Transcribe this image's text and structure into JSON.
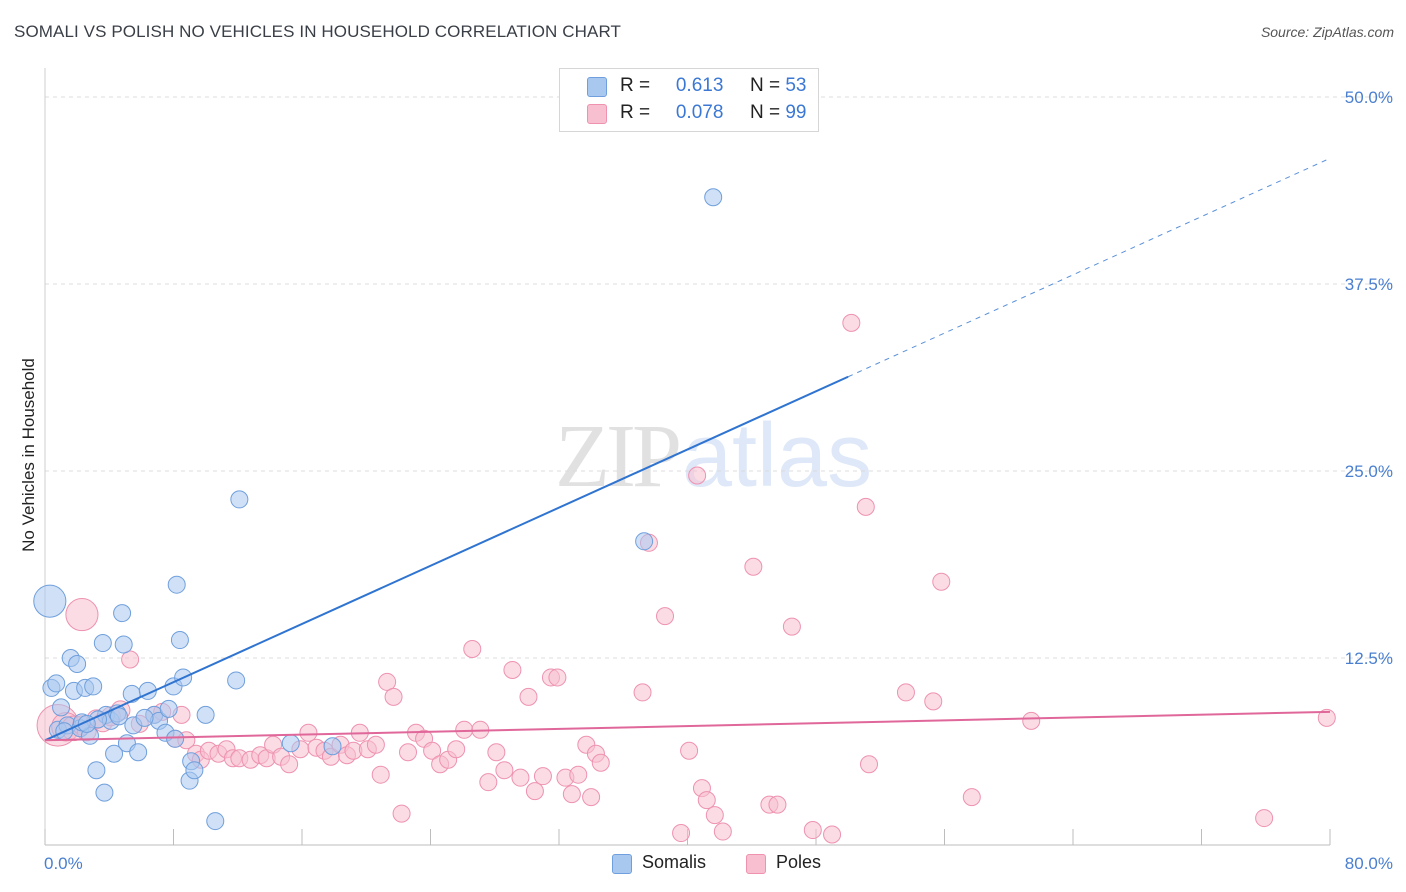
{
  "title": "SOMALI VS POLISH NO VEHICLES IN HOUSEHOLD CORRELATION CHART",
  "source": "Source: ZipAtlas.com",
  "watermark": {
    "zip": "ZIP",
    "atlas": "atlas"
  },
  "legend": {
    "somali": {
      "r_label": "R =",
      "r_value": "0.613",
      "n_label": "N =",
      "n_value": "53"
    },
    "poles": {
      "r_label": "R =",
      "r_value": "0.078",
      "n_label": "N =",
      "n_value": "99"
    }
  },
  "bottom_legend": {
    "somalis": "Somalis",
    "poles": "Poles"
  },
  "colors": {
    "somali_fill": "#a9c8f0",
    "somali_stroke": "#6f9fdc",
    "somali_line": "#2f74d0",
    "poles_fill": "#f7bfd0",
    "poles_stroke": "#ee92b0",
    "poles_line": "#e0679a",
    "tick_label": "#4a7fd0",
    "grid": "#dcdcdc"
  },
  "chart_data": {
    "type": "scatter",
    "title": "SOMALI VS POLISH NO VEHICLES IN HOUSEHOLD CORRELATION CHART",
    "ylabel": "No Vehicles in Household",
    "xlabel": "",
    "xlim": [
      0,
      80
    ],
    "ylim": [
      0,
      50
    ],
    "x_tick_labels": [
      "0.0%",
      "80.0%"
    ],
    "y_ticks": [
      12.5,
      25.0,
      37.5,
      50.0
    ],
    "y_tick_labels": [
      "12.5%",
      "25.0%",
      "37.5%",
      "50.0%"
    ],
    "grid": "horizontal dashed",
    "legend_position": "top-center",
    "series": [
      {
        "name": "Somalis",
        "r": 0.613,
        "n": 53,
        "trend": {
          "x0": 0,
          "y0": 7.0,
          "x1": 50,
          "y1": 31.3,
          "dashed_to_x": 80,
          "dashed_to_y": 45.9
        },
        "points": [
          [
            0.3,
            16.3,
            1.7
          ],
          [
            0.4,
            10.5,
            0.9
          ],
          [
            0.7,
            10.8,
            0.9
          ],
          [
            0.8,
            7.7,
            0.9
          ],
          [
            1.0,
            9.2,
            0.9
          ],
          [
            1.4,
            8.0,
            0.9
          ],
          [
            1.6,
            12.5,
            0.9
          ],
          [
            1.8,
            10.3,
            0.9
          ],
          [
            2.0,
            12.1,
            0.9
          ],
          [
            2.2,
            7.8,
            0.9
          ],
          [
            2.5,
            10.5,
            0.9
          ],
          [
            2.8,
            7.3,
            0.9
          ],
          [
            3.0,
            10.6,
            0.9
          ],
          [
            3.2,
            5.0,
            0.9
          ],
          [
            3.6,
            13.5,
            0.9
          ],
          [
            3.8,
            8.7,
            0.9
          ],
          [
            4.1,
            8.3,
            0.9
          ],
          [
            4.3,
            6.1,
            0.9
          ],
          [
            4.5,
            8.8,
            0.9
          ],
          [
            4.8,
            15.5,
            0.9
          ],
          [
            4.9,
            13.4,
            0.9
          ],
          [
            5.1,
            6.8,
            0.9
          ],
          [
            5.4,
            10.1,
            0.9
          ],
          [
            5.8,
            6.2,
            0.9
          ],
          [
            3.7,
            3.5,
            0.9
          ],
          [
            6.4,
            10.3,
            0.9
          ],
          [
            6.8,
            8.7,
            0.9
          ],
          [
            7.1,
            8.3,
            0.9
          ],
          [
            7.5,
            7.5,
            0.9
          ],
          [
            7.7,
            9.1,
            0.9
          ],
          [
            8.0,
            10.6,
            0.9
          ],
          [
            8.1,
            7.1,
            0.9
          ],
          [
            8.2,
            17.4,
            0.9
          ],
          [
            8.4,
            13.7,
            0.9
          ],
          [
            8.6,
            11.2,
            0.9
          ],
          [
            9.0,
            4.3,
            0.9
          ],
          [
            9.1,
            5.6,
            0.9
          ],
          [
            9.3,
            5.0,
            0.9
          ],
          [
            10.0,
            8.7,
            0.9
          ],
          [
            10.6,
            1.6,
            0.9
          ],
          [
            11.9,
            11.0,
            0.9
          ],
          [
            12.1,
            23.1,
            0.9
          ],
          [
            15.3,
            6.8,
            0.9
          ],
          [
            17.9,
            6.6,
            0.9
          ],
          [
            37.3,
            20.3,
            0.9
          ],
          [
            41.6,
            43.3,
            0.9
          ],
          [
            2.3,
            8.2,
            0.9
          ],
          [
            3.3,
            8.4,
            0.9
          ],
          [
            5.5,
            8.0,
            0.9
          ],
          [
            6.2,
            8.5,
            0.9
          ],
          [
            1.2,
            7.6,
            0.9
          ],
          [
            2.6,
            8.1,
            0.9
          ],
          [
            4.6,
            8.6,
            0.9
          ]
        ]
      },
      {
        "name": "Poles",
        "r": 0.078,
        "n": 99,
        "trend": {
          "x0": 0,
          "y0": 7.0,
          "x1": 80,
          "y1": 8.9
        },
        "points": [
          [
            0.8,
            8.0,
            2.2
          ],
          [
            1.3,
            7.9,
            1.5
          ],
          [
            1.8,
            7.8,
            1.3
          ],
          [
            2.3,
            8.0,
            1.0
          ],
          [
            2.6,
            7.6,
            1.0
          ],
          [
            3.2,
            8.4,
            1.0
          ],
          [
            3.6,
            8.2,
            1.0
          ],
          [
            4.1,
            8.6,
            1.0
          ],
          [
            4.7,
            9.0,
            1.0
          ],
          [
            2.3,
            15.4,
            1.7
          ],
          [
            5.3,
            12.4,
            0.9
          ],
          [
            5.9,
            8.1,
            0.9
          ],
          [
            6.8,
            8.7,
            0.9
          ],
          [
            7.3,
            8.9,
            0.9
          ],
          [
            8.1,
            7.1,
            0.9
          ],
          [
            8.5,
            8.7,
            0.9
          ],
          [
            8.8,
            7.0,
            0.9
          ],
          [
            9.4,
            6.1,
            0.9
          ],
          [
            9.7,
            5.7,
            0.9
          ],
          [
            10.2,
            6.3,
            0.9
          ],
          [
            10.8,
            6.1,
            0.9
          ],
          [
            11.3,
            6.4,
            0.9
          ],
          [
            11.7,
            5.8,
            0.9
          ],
          [
            12.1,
            5.8,
            0.9
          ],
          [
            12.8,
            5.7,
            0.9
          ],
          [
            13.4,
            6.0,
            0.9
          ],
          [
            13.8,
            5.8,
            0.9
          ],
          [
            14.2,
            6.7,
            0.9
          ],
          [
            14.7,
            5.9,
            0.9
          ],
          [
            15.2,
            5.4,
            0.9
          ],
          [
            15.9,
            6.4,
            0.9
          ],
          [
            16.4,
            7.5,
            0.9
          ],
          [
            16.9,
            6.5,
            0.9
          ],
          [
            17.4,
            6.3,
            0.9
          ],
          [
            17.8,
            5.9,
            0.9
          ],
          [
            18.4,
            6.7,
            0.9
          ],
          [
            18.8,
            6.0,
            0.9
          ],
          [
            19.2,
            6.3,
            0.9
          ],
          [
            19.6,
            7.5,
            0.9
          ],
          [
            20.1,
            6.4,
            0.9
          ],
          [
            20.6,
            6.7,
            0.9
          ],
          [
            20.9,
            4.7,
            0.9
          ],
          [
            21.3,
            10.9,
            0.9
          ],
          [
            21.7,
            9.9,
            0.9
          ],
          [
            22.2,
            2.1,
            0.9
          ],
          [
            22.6,
            6.2,
            0.9
          ],
          [
            23.1,
            7.5,
            0.9
          ],
          [
            23.6,
            7.1,
            0.9
          ],
          [
            24.1,
            6.3,
            0.9
          ],
          [
            24.6,
            5.4,
            0.9
          ],
          [
            25.1,
            5.7,
            0.9
          ],
          [
            25.6,
            6.4,
            0.9
          ],
          [
            26.1,
            7.7,
            0.9
          ],
          [
            26.6,
            13.1,
            0.9
          ],
          [
            27.1,
            7.7,
            0.9
          ],
          [
            27.6,
            4.2,
            0.9
          ],
          [
            28.1,
            6.2,
            0.9
          ],
          [
            28.6,
            5.0,
            0.9
          ],
          [
            29.1,
            11.7,
            0.9
          ],
          [
            29.6,
            4.5,
            0.9
          ],
          [
            30.1,
            9.9,
            0.9
          ],
          [
            30.5,
            3.6,
            0.9
          ],
          [
            31.0,
            4.6,
            0.9
          ],
          [
            31.5,
            11.2,
            0.9
          ],
          [
            31.9,
            11.2,
            0.9
          ],
          [
            32.4,
            4.5,
            0.9
          ],
          [
            32.8,
            3.4,
            0.9
          ],
          [
            33.2,
            4.7,
            0.9
          ],
          [
            33.7,
            6.7,
            0.9
          ],
          [
            34.0,
            3.2,
            0.9
          ],
          [
            34.3,
            6.1,
            0.9
          ],
          [
            34.6,
            5.5,
            0.9
          ],
          [
            37.2,
            10.2,
            0.9
          ],
          [
            37.6,
            20.2,
            0.9
          ],
          [
            38.6,
            15.3,
            0.9
          ],
          [
            39.6,
            0.8,
            0.9
          ],
          [
            40.1,
            6.3,
            0.9
          ],
          [
            40.6,
            24.7,
            0.9
          ],
          [
            40.9,
            3.8,
            0.9
          ],
          [
            41.2,
            3.0,
            0.9
          ],
          [
            41.7,
            2.0,
            0.9
          ],
          [
            42.2,
            0.9,
            0.9
          ],
          [
            44.1,
            18.6,
            0.9
          ],
          [
            45.1,
            2.7,
            0.9
          ],
          [
            45.6,
            2.7,
            0.9
          ],
          [
            46.5,
            14.6,
            0.9
          ],
          [
            47.8,
            1.0,
            0.9
          ],
          [
            49.0,
            0.7,
            0.9
          ],
          [
            50.2,
            34.9,
            0.9
          ],
          [
            51.1,
            22.6,
            0.9
          ],
          [
            51.3,
            5.4,
            0.9
          ],
          [
            53.6,
            10.2,
            0.9
          ],
          [
            55.3,
            9.6,
            0.9
          ],
          [
            55.8,
            17.6,
            0.9
          ],
          [
            57.7,
            3.2,
            0.9
          ],
          [
            61.4,
            8.3,
            0.9
          ],
          [
            75.9,
            1.8,
            0.9
          ],
          [
            79.8,
            8.5,
            0.9
          ]
        ]
      }
    ]
  }
}
